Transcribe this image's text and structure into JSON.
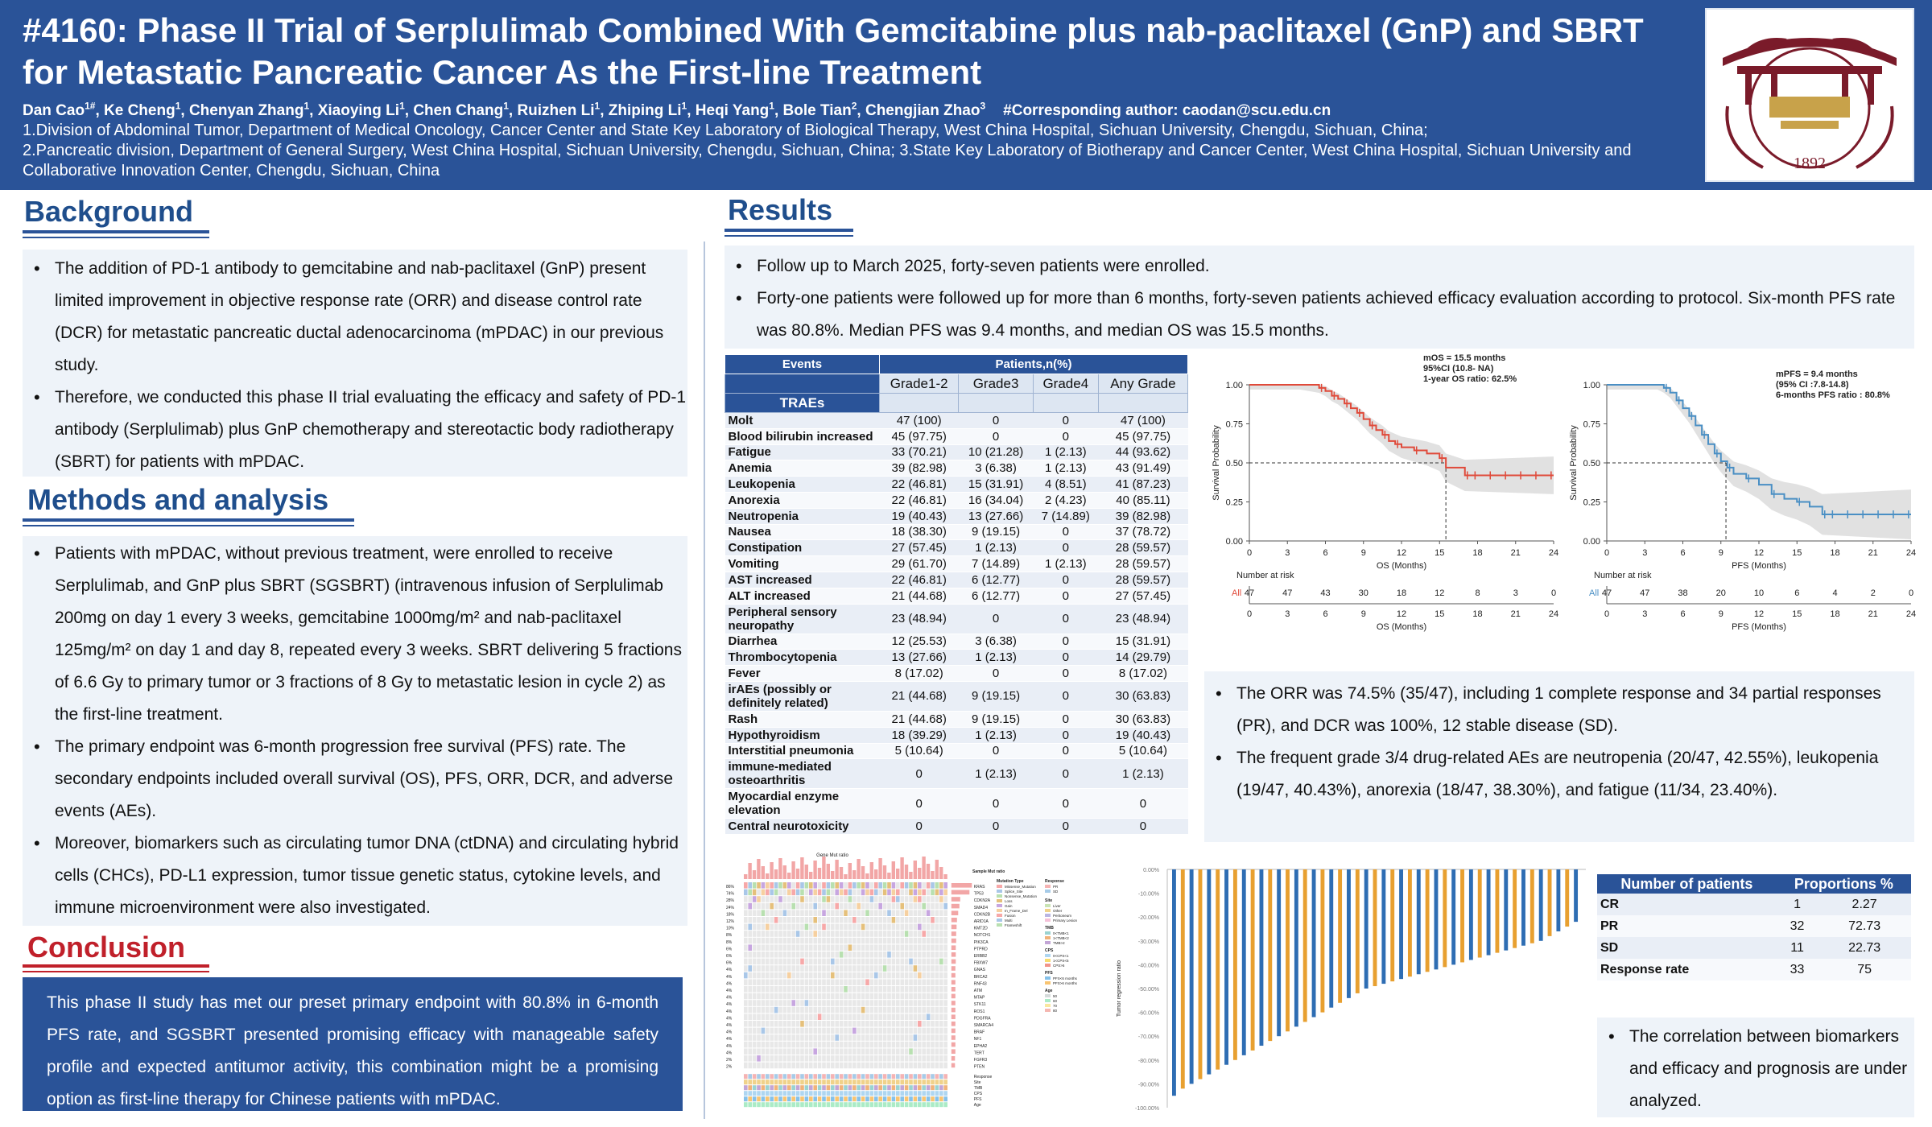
{
  "header": {
    "title": "#4160: Phase II Trial of Serplulimab Combined With Gemcitabine plus nab-paclitaxel (GnP) and SBRT for Metastatic Pancreatic Cancer As the First-line Treatment",
    "authors": [
      {
        "name": "Dan Cao",
        "sup": "1#"
      },
      {
        "name": "Ke Cheng",
        "sup": "1"
      },
      {
        "name": "Chenyan Zhang",
        "sup": "1"
      },
      {
        "name": "Xiaoying Li",
        "sup": "1"
      },
      {
        "name": "Chen Chang",
        "sup": "1"
      },
      {
        "name": "Ruizhen Li",
        "sup": "1"
      },
      {
        "name": "Zhiping Li",
        "sup": "1"
      },
      {
        "name": "Heqi Yang",
        "sup": "1"
      },
      {
        "name": "Bole Tian",
        "sup": "2"
      },
      {
        "name": "Chengjian Zhao",
        "sup": "3"
      }
    ],
    "corresponding": "#Corresponding author: caodan@scu.edu.cn",
    "affiliations": [
      "1.Division of Abdominal Tumor, Department of Medical Oncology, Cancer Center and State Key Laboratory of Biological Therapy, West China Hospital, Sichuan University, Chengdu, Sichuan, China;",
      "2.Pancreatic division, Department of General Surgery, West China Hospital, Sichuan University, Chengdu, Sichuan, China; 3.State Key Laboratory of Biotherapy and Cancer Center, West China Hospital, Sichuan University and Collaborative Innovation Center, Chengdu, Sichuan, China"
    ],
    "logo": {
      "text": "1892"
    }
  },
  "background": {
    "heading": "Background",
    "bullets": [
      "The addition of PD-1 antibody to gemcitabine and nab-paclitaxel (GnP) present limited improvement in objective response rate (ORR) and disease control rate (DCR) for metastatic pancreatic ductal adenocarcinoma (mPDAC) in our previous study.",
      "Therefore, we conducted this phase II trial evaluating the efficacy and safety of PD-1 antibody (Serplulimab) plus GnP chemotherapy and stereotactic body radiotherapy (SBRT) for patients with mPDAC."
    ]
  },
  "methods": {
    "heading": "Methods and analysis",
    "bullets": [
      "Patients with mPDAC, without previous treatment, were enrolled to receive Serplulimab, and GnP plus SBRT (SGSBRT) (intravenous infusion of Serplulimab 200mg on day 1 every 3 weeks, gemcitabine 1000mg/m² and nab-paclitaxel 125mg/m² on day 1 and day 8, repeated every 3 weeks. SBRT delivering 5 fractions of 6.6 Gy to primary tumor or 3 fractions of 8 Gy to metastatic lesion in cycle 2) as the first-line treatment.",
      "The primary endpoint was 6-month progression free survival (PFS) rate. The secondary endpoints included overall survival (OS), PFS, ORR, DCR, and adverse events (AEs).",
      " Moreover, biomarkers such as circulating tumor DNA (ctDNA) and circulating hybrid cells (CHCs), PD-L1 expression, tumor tissue genetic status, cytokine levels, and immune microenvironment were also investigated."
    ]
  },
  "conclusion": {
    "heading": "Conclusion",
    "text": "This phase II study has met our preset primary endpoint with 80.8% in 6-month PFS rate, and SGSBRT presented promising efficacy with manageable safety profile and expected antitumor activity, this combination might be a promising option as first-line therapy for Chinese patients with mPDAC."
  },
  "results": {
    "heading": "Results",
    "bullets_top": [
      "Follow up to March 2025, forty-seven patients were enrolled.",
      "Forty-one patients were followed up for more than 6 months, forty-seven patients achieved efficacy evaluation according to protocol. Six-month PFS rate was 80.8%. Median PFS was 9.4 months, and median OS was 15.5 months."
    ],
    "bullets_mid": [
      "The ORR was 74.5% (35/47), including 1 complete response and 34 partial responses (PR), and DCR was 100%, 12 stable disease (SD).",
      "The frequent grade 3/4 drug-related AEs are neutropenia (20/47, 42.55%), leukopenia (19/47, 40.43%), anorexia (18/47, 38.30%), and fatigue (11/34, 23.40%)."
    ],
    "bullets_bottom": [
      "The correlation between biomarkers and efficacy and prognosis are under analyzed."
    ]
  },
  "trae_table": {
    "col_events": "Events",
    "col_patients": "Patients,n(%)",
    "label": "TRAEs",
    "grades": [
      "Grade1-2",
      "Grade3",
      "Grade4",
      "Any Grade"
    ],
    "rows": [
      {
        "event": "Molt",
        "g12": "47 (100)",
        "g3": "0",
        "g4": "0",
        "any": "47 (100)"
      },
      {
        "event": "Blood bilirubin increased",
        "g12": "45 (97.75)",
        "g3": "0",
        "g4": "0",
        "any": "45 (97.75)"
      },
      {
        "event": "Fatigue",
        "g12": "33 (70.21)",
        "g3": "10 (21.28)",
        "g4": "1 (2.13)",
        "any": "44 (93.62)"
      },
      {
        "event": "Anemia",
        "g12": "39 (82.98)",
        "g3": "3 (6.38)",
        "g4": "1 (2.13)",
        "any": "43 (91.49)"
      },
      {
        "event": "Leukopenia",
        "g12": "22 (46.81)",
        "g3": "15 (31.91)",
        "g4": "4 (8.51)",
        "any": "41 (87.23)"
      },
      {
        "event": "Anorexia",
        "g12": "22 (46.81)",
        "g3": "16 (34.04)",
        "g4": "2 (4.23)",
        "any": "40 (85.11)"
      },
      {
        "event": "Neutropenia",
        "g12": "19 (40.43)",
        "g3": "13 (27.66)",
        "g4": "7 (14.89)",
        "any": "39 (82.98)"
      },
      {
        "event": "Nausea",
        "g12": "18 (38.30)",
        "g3": "9 (19.15)",
        "g4": "0",
        "any": "37 (78.72)"
      },
      {
        "event": "Constipation",
        "g12": "27 (57.45)",
        "g3": "1 (2.13)",
        "g4": "0",
        "any": "28 (59.57)"
      },
      {
        "event": "Vomiting",
        "g12": "29 (61.70)",
        "g3": "7 (14.89)",
        "g4": "1 (2.13)",
        "any": "28 (59.57)"
      },
      {
        "event": "AST increased",
        "g12": "22 (46.81)",
        "g3": "6 (12.77)",
        "g4": "0",
        "any": "28 (59.57)"
      },
      {
        "event": "ALT increased",
        "g12": "21 (44.68)",
        "g3": "6 (12.77)",
        "g4": "0",
        "any": "27 (57.45)"
      },
      {
        "event": "Peripheral sensory neuropathy",
        "g12": "23 (48.94)",
        "g3": "0",
        "g4": "0",
        "any": "23 (48.94)",
        "tall": true
      },
      {
        "event": "Diarrhea",
        "g12": "12 (25.53)",
        "g3": "3 (6.38)",
        "g4": "0",
        "any": "15 (31.91)"
      },
      {
        "event": "Thrombocytopenia",
        "g12": "13 (27.66)",
        "g3": "1 (2.13)",
        "g4": "0",
        "any": "14 (29.79)"
      },
      {
        "event": "Fever",
        "g12": "8 (17.02)",
        "g3": "0",
        "g4": "0",
        "any": "8 (17.02)"
      },
      {
        "event": "irAEs (possibly or definitely related)",
        "g12": "21 (44.68)",
        "g3": "9 (19.15)",
        "g4": "0",
        "any": "30 (63.83)",
        "tall": true
      },
      {
        "event": "Rash",
        "g12": "21 (44.68)",
        "g3": "9 (19.15)",
        "g4": "0",
        "any": "30 (63.83)"
      },
      {
        "event": "Hypothyroidism",
        "g12": "18 (39.29)",
        "g3": "1 (2.13)",
        "g4": "0",
        "any": "19 (40.43)"
      },
      {
        "event": "Interstitial pneumonia",
        "g12": "5 (10.64)",
        "g3": "0",
        "g4": "0",
        "any": "5 (10.64)"
      },
      {
        "event": "immune-mediated osteoarthritis",
        "g12": "0",
        "g3": "1 (2.13)",
        "g4": "0",
        "any": "1 (2.13)",
        "tall": true
      },
      {
        "event": "Myocardial enzyme elevation",
        "g12": "0",
        "g3": "0",
        "g4": "0",
        "any": "0",
        "tall": true
      },
      {
        "event": "Central neurotoxicity",
        "g12": "0",
        "g3": "0",
        "g4": "0",
        "any": "0"
      }
    ]
  },
  "chart_data": [
    {
      "type": "line",
      "title": "",
      "annotation": [
        "mOS = 15.5 months",
        "95%CI (10.8- NA)",
        "1-year OS ratio: 62.5%"
      ],
      "xlabel": "OS (Months)",
      "ylabel": "Survival Probability",
      "xlim": [
        0,
        24
      ],
      "ylim": [
        0,
        1
      ],
      "xticks": [
        "0",
        "3",
        "6",
        "9",
        "12",
        "15",
        "18",
        "21",
        "24"
      ],
      "yticks": [
        "0.00",
        "0.25",
        "0.50",
        "0.75",
        "1.00"
      ],
      "color": "#e04a3a",
      "median_x": 15.5,
      "x": [
        0,
        4,
        5.5,
        6,
        6.5,
        7,
        7.5,
        8,
        8.5,
        9,
        9.5,
        10,
        10.5,
        11,
        11.5,
        12,
        13,
        14,
        15,
        15.5,
        17,
        24
      ],
      "y": [
        1.0,
        1.0,
        0.98,
        0.96,
        0.93,
        0.91,
        0.88,
        0.85,
        0.82,
        0.78,
        0.74,
        0.71,
        0.68,
        0.64,
        0.62,
        0.6,
        0.58,
        0.56,
        0.53,
        0.47,
        0.42,
        0.42
      ],
      "risk_table": {
        "title": "Number at risk",
        "group": "All",
        "x": [
          0,
          3,
          6,
          9,
          12,
          15,
          18,
          21,
          24
        ],
        "counts": [
          "47",
          "47",
          "43",
          "30",
          "18",
          "12",
          "8",
          "3",
          "0"
        ],
        "xlabel": "OS (Months)"
      }
    },
    {
      "type": "line",
      "title": "",
      "annotation": [
        "mPFS = 9.4 months",
        "(95% CI :7.8-14.8)",
        "6-months PFS ratio : 80.8%"
      ],
      "xlabel": "PFS (Months)",
      "ylabel": "Survival Probability",
      "xlim": [
        0,
        24
      ],
      "ylim": [
        0,
        1
      ],
      "xticks": [
        "0",
        "3",
        "6",
        "9",
        "12",
        "15",
        "18",
        "21",
        "24"
      ],
      "yticks": [
        "0.00",
        "0.25",
        "0.50",
        "0.75",
        "1.00"
      ],
      "color": "#4a8fc4",
      "median_x": 9.4,
      "x": [
        0,
        4,
        4.5,
        5,
        5.5,
        6,
        6.5,
        7,
        7.5,
        8,
        8.5,
        9,
        9.5,
        10,
        11,
        12,
        13,
        14,
        15,
        16,
        17,
        24
      ],
      "y": [
        1.0,
        1.0,
        0.98,
        0.95,
        0.9,
        0.85,
        0.8,
        0.74,
        0.68,
        0.62,
        0.56,
        0.51,
        0.47,
        0.43,
        0.4,
        0.36,
        0.3,
        0.27,
        0.25,
        0.22,
        0.17,
        0.17
      ],
      "risk_table": {
        "title": "Number at risk",
        "group": "All",
        "x": [
          0,
          3,
          6,
          9,
          12,
          15,
          18,
          21,
          24
        ],
        "counts": [
          "47",
          "47",
          "38",
          "20",
          "10",
          "6",
          "4",
          "2",
          "0"
        ],
        "xlabel": "PFS (Months)"
      }
    },
    {
      "type": "bar",
      "title": "",
      "ylabel": "Tumor regression ratio",
      "ylim": [
        -100,
        0
      ],
      "yticks": [
        "0.00%",
        "-10.00%",
        "-20.00%",
        "-30.00%",
        "-40.00%",
        "-50.00%",
        "-60.00%",
        "-70.00%",
        "-80.00%",
        "-90.00%",
        "-100.00%"
      ],
      "values": [
        -95,
        -92,
        -90,
        -88,
        -86,
        -84,
        -82,
        -80,
        -78,
        -76,
        -74,
        -72,
        -70,
        -68,
        -66,
        -64,
        -62,
        -60,
        -58,
        -56,
        -54,
        -52,
        -50,
        -49,
        -48,
        -47,
        -46,
        -45,
        -44,
        -43,
        -42,
        -41,
        -40,
        -39,
        -38,
        -37,
        -36,
        -35,
        -34,
        -33,
        -32,
        -31,
        -30,
        -28,
        -26,
        -24,
        -22
      ],
      "colors": [
        "#2e6db3",
        "#e8a030"
      ]
    }
  ],
  "oncoplot": {
    "title": "Gene Mut ratio",
    "legend_mutation_title": "Mutation Type",
    "legend_mutation": [
      "Missense_Mutation",
      "Splice_Site",
      "Nonsense_Mutation",
      "Loss",
      "Gain",
      "In_Frame_Del",
      "Fusion",
      "Multi",
      "Frameshift"
    ],
    "legend_response_title": "Response",
    "legend_response": [
      "PR",
      "SD"
    ],
    "legend_site_title": "Site",
    "legend_site": [
      "Liver",
      "Other",
      "Peritoneum",
      "Primary Lesion"
    ],
    "legend_tmb_title": "TMB",
    "legend_tmb": [
      "0<TMB<1",
      "1<TMB<2",
      "TMB>2"
    ],
    "legend_cps_title": "CPS",
    "legend_cps": [
      "0<CPS<1",
      "1<CPS<5",
      "CPS>5"
    ],
    "legend_pfs_title": "PFS",
    "legend_pfs": [
      "PFS<6 months",
      "PFS>6 months"
    ],
    "legend_age_title": "Age",
    "legend_age": [
      "50",
      "60",
      "70",
      "80"
    ],
    "sample_ratio_label": "Sample Mut ratio",
    "genes": [
      "KRAS",
      "TP53",
      "CDKN2A",
      "SMAD4",
      "CDKN2B",
      "ARID1A",
      "KMT2D",
      "NOTCH1",
      "PIK3CA",
      "PTPRD",
      "ERBB2",
      "FBXW7",
      "GNAS",
      "BRCA2",
      "RNF43",
      "ATM",
      "MTAP",
      "STK11",
      "ROS1",
      "PDGFRA",
      "SMARCA4",
      "BRAF",
      "NF1",
      "EPHA2",
      "TERT",
      "FGFR3",
      "PTEN"
    ],
    "pct": [
      "86%",
      "74%",
      "28%",
      "24%",
      "18%",
      "12%",
      "10%",
      "8%",
      "8%",
      "6%",
      "6%",
      "6%",
      "4%",
      "4%",
      "4%",
      "4%",
      "4%",
      "4%",
      "4%",
      "4%",
      "4%",
      "4%",
      "4%",
      "4%",
      "4%",
      "2%",
      "2%"
    ],
    "track_labels": [
      "Response",
      "Site",
      "TMB",
      "CPS",
      "PFS",
      "Age"
    ]
  },
  "response_table": {
    "col1": "Number of patients",
    "col2": "Proportions %",
    "rows": [
      {
        "label": "CR",
        "n": "1",
        "pct": "2.27"
      },
      {
        "label": "PR",
        "n": "32",
        "pct": "72.73"
      },
      {
        "label": "SD",
        "n": "11",
        "pct": "22.73"
      },
      {
        "label": "Response rate",
        "n": "33",
        "pct": "75"
      }
    ]
  }
}
